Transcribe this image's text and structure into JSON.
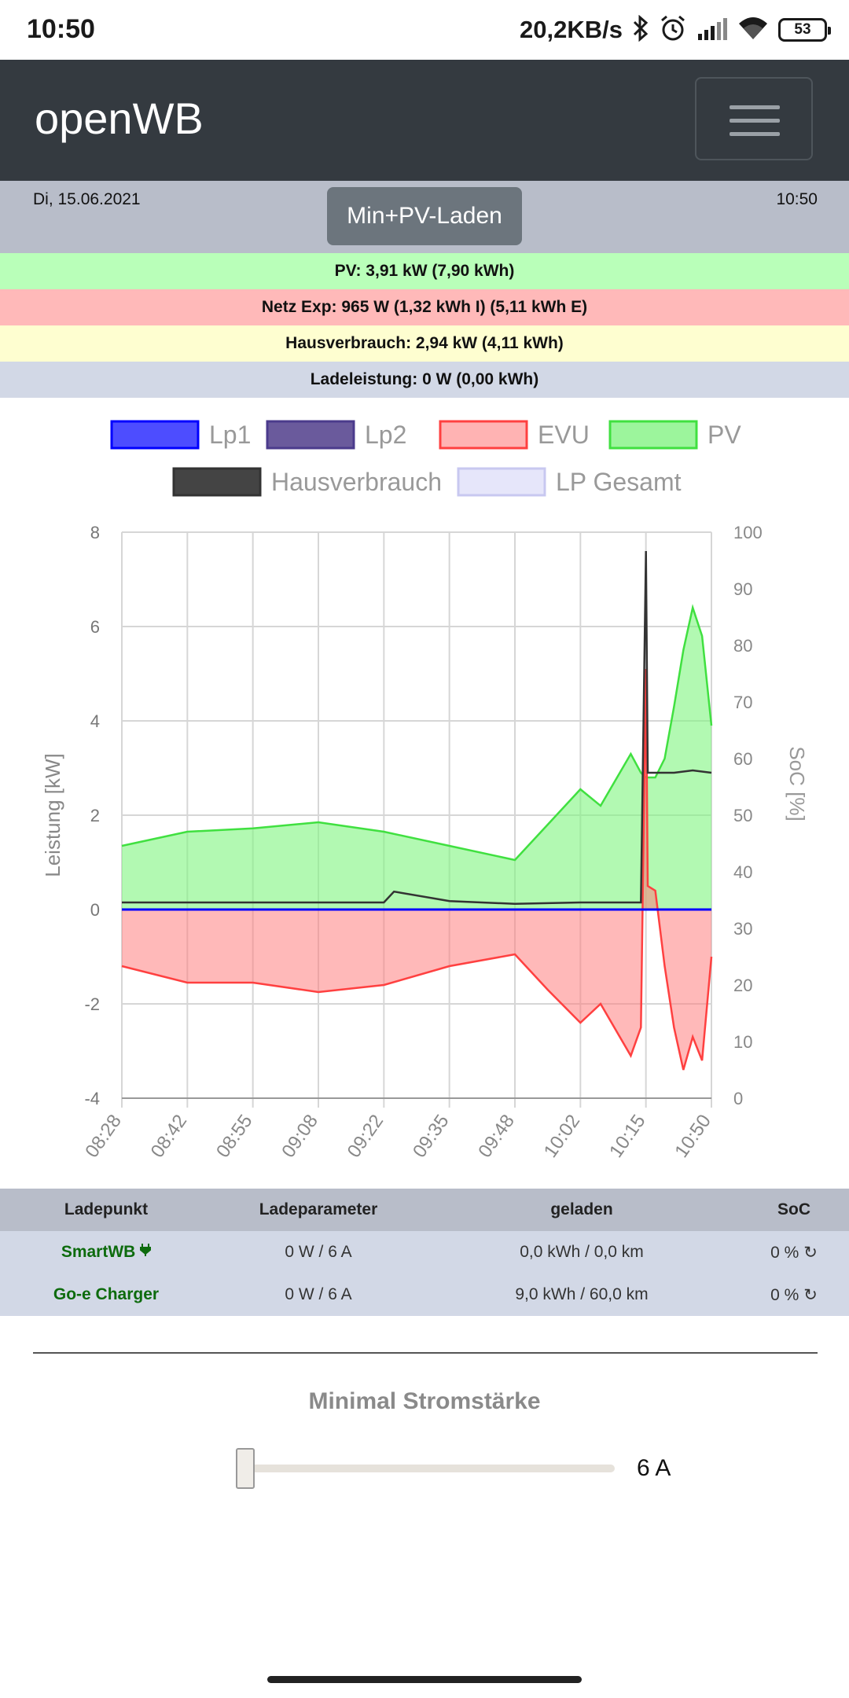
{
  "status_bar": {
    "time": "10:50",
    "net_speed": "20,2KB/s",
    "battery": "53",
    "icons": [
      "bluetooth-icon",
      "alarm-icon",
      "signal-icon",
      "wifi-icon",
      "battery-icon"
    ]
  },
  "navbar": {
    "brand": "openWB",
    "menu_icon": "hamburger-menu-icon"
  },
  "header": {
    "date": "Di, 15.06.2021",
    "time": "10:50",
    "mode_button": "Min+PV-Laden"
  },
  "summary": {
    "pv": "PV: 3,91 kW (7,90 kWh)",
    "grid": "Netz Exp: 965 W (1,32 kWh I) (5,11 kWh E)",
    "house": "Hausverbrauch: 2,94 kW (4,11 kWh)",
    "charge": "Ladeleistung: 0 W (0,00 kWh)"
  },
  "colors": {
    "pv_bar": "#b9ffb9",
    "grid_bar": "#ffb9b9",
    "house_bar": "#fefed0",
    "charge_bar": "#d2d8e6",
    "lp1": "#0000ff",
    "lp2": "#4b3b8c",
    "evu": "#ff4040",
    "pv": "#40e040",
    "hausverbrauch": "#333333",
    "lp_gesamt": "#c8c8f0"
  },
  "chart_data": {
    "type": "area",
    "ylabel": "Leistung [kW]",
    "y2label": "SoC [%]",
    "ylim": [
      -4,
      8
    ],
    "y2lim": [
      0,
      100
    ],
    "yticks": [
      "8",
      "6",
      "4",
      "2",
      "0",
      "-2",
      "-4"
    ],
    "y2ticks": [
      "100",
      "90",
      "80",
      "70",
      "60",
      "50",
      "40",
      "30",
      "20",
      "10",
      "0"
    ],
    "xticks": [
      "08:28",
      "08:42",
      "08:55",
      "09:08",
      "09:22",
      "09:35",
      "09:48",
      "10:02",
      "10:15",
      "10:50"
    ],
    "legend": [
      "Lp1",
      "Lp2",
      "EVU",
      "PV",
      "Hausverbrauch",
      "LP Gesamt"
    ],
    "legend_placement": "top",
    "grid": true,
    "series": [
      {
        "name": "PV",
        "x": [
          "08:28",
          "08:42",
          "08:55",
          "09:08",
          "09:22",
          "09:35",
          "09:48",
          "09:55",
          "10:02",
          "10:06",
          "10:12",
          "10:14",
          "10:15",
          "10:20",
          "10:25",
          "10:30",
          "10:35",
          "10:40",
          "10:45",
          "10:50"
        ],
        "values": [
          1.35,
          1.65,
          1.72,
          1.85,
          1.65,
          1.35,
          1.05,
          1.8,
          2.55,
          2.2,
          3.3,
          2.9,
          2.8,
          2.8,
          3.2,
          4.3,
          5.5,
          6.4,
          5.8,
          3.9
        ]
      },
      {
        "name": "EVU",
        "x": [
          "08:28",
          "08:42",
          "08:55",
          "09:08",
          "09:22",
          "09:35",
          "09:48",
          "09:55",
          "10:02",
          "10:06",
          "10:12",
          "10:14",
          "10:15",
          "10:16",
          "10:20",
          "10:25",
          "10:30",
          "10:35",
          "10:40",
          "10:45",
          "10:50"
        ],
        "values": [
          -1.2,
          -1.55,
          -1.55,
          -1.75,
          -1.6,
          -1.2,
          -0.95,
          -1.7,
          -2.4,
          -2.0,
          -3.1,
          -2.5,
          5.1,
          0.5,
          0.4,
          -1.2,
          -2.5,
          -3.4,
          -2.7,
          -3.2,
          -1.0
        ]
      },
      {
        "name": "Hausverbrauch",
        "x": [
          "08:28",
          "08:42",
          "08:55",
          "09:08",
          "09:22",
          "09:24",
          "09:35",
          "09:48",
          "10:02",
          "10:14",
          "10:15",
          "10:16",
          "10:20",
          "10:30",
          "10:40",
          "10:50"
        ],
        "values": [
          0.15,
          0.15,
          0.15,
          0.15,
          0.15,
          0.38,
          0.18,
          0.12,
          0.15,
          0.15,
          7.6,
          2.9,
          2.9,
          2.9,
          2.95,
          2.9
        ]
      },
      {
        "name": "Lp1",
        "x": [
          "08:28",
          "10:50"
        ],
        "values": [
          0,
          0
        ]
      }
    ]
  },
  "table": {
    "headers": [
      "Ladepunkt",
      "Ladeparameter",
      "geladen",
      "SoC"
    ],
    "rows": [
      {
        "name": "SmartWB",
        "icon": "plug-icon",
        "param": "0 W / 6 A",
        "charged": "0,0 kWh / 0,0 km",
        "soc": "0 %",
        "soc_icon": "reload-icon"
      },
      {
        "name": "Go-e Charger",
        "param": "0 W / 6 A",
        "charged": "9,0 kWh / 60,0 km",
        "soc": "0 %",
        "soc_icon": "reload-icon"
      }
    ]
  },
  "min_current": {
    "title": "Minimal Stromstärke",
    "value": "6 A",
    "level_fraction": 0
  }
}
